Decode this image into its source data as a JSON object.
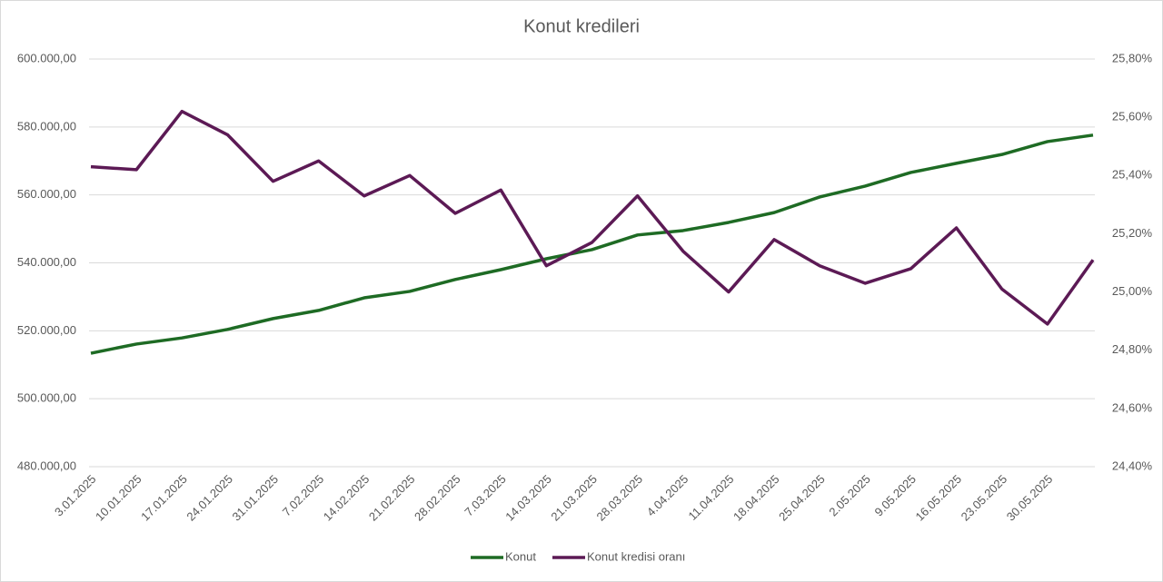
{
  "chart_data": {
    "type": "line",
    "title": "Konut kredileri",
    "categories": [
      "3.01.2025",
      "10.01.2025",
      "17.01.2025",
      "24.01.2025",
      "31.01.2025",
      "7.02.2025",
      "14.02.2025",
      "21.02.2025",
      "28.02.2025",
      "7.03.2025",
      "14.03.2025",
      "21.03.2025",
      "28.03.2025",
      "4.04.2025",
      "11.04.2025",
      "18.04.2025",
      "25.04.2025",
      "2.05.2025",
      "9.05.2025",
      "16.05.2025",
      "23.05.2025",
      "30.05.2025",
      null
    ],
    "series": [
      {
        "name": "Konut",
        "color": "#1e6b24",
        "values": [
          513400,
          516100,
          517900,
          520400,
          523600,
          526000,
          529700,
          531600,
          535100,
          538000,
          541200,
          543900,
          548200,
          549500,
          551900,
          554800,
          559400,
          562600,
          566600,
          569300,
          571900,
          575700,
          577600
        ]
      },
      {
        "name": "Konut kredisi oranı",
        "color": "#5c1a55",
        "axis": "y2",
        "values": [
          25.43,
          25.42,
          25.62,
          25.54,
          25.38,
          25.45,
          25.33,
          25.4,
          25.27,
          25.35,
          25.09,
          25.17,
          25.33,
          25.14,
          25.0,
          25.18,
          25.09,
          25.03,
          25.08,
          25.22,
          25.01,
          24.89,
          25.11
        ]
      }
    ],
    "ylim": [
      480000,
      600000
    ],
    "yticks": [
      {
        "value": 480000,
        "label": "480.000,00"
      },
      {
        "value": 500000,
        "label": "500.000,00"
      },
      {
        "value": 520000,
        "label": "520.000,00"
      },
      {
        "value": 540000,
        "label": "540.000,00"
      },
      {
        "value": 560000,
        "label": "560.000,00"
      },
      {
        "value": 580000,
        "label": "580.000,00"
      },
      {
        "value": 600000,
        "label": "600.000,00"
      }
    ],
    "y2lim": [
      24.4,
      25.8
    ],
    "y2ticks": [
      {
        "value": 24.4,
        "label": "24,40%"
      },
      {
        "value": 24.6,
        "label": "24,60%"
      },
      {
        "value": 24.8,
        "label": "24,80%"
      },
      {
        "value": 25.0,
        "label": "25,00%"
      },
      {
        "value": 25.2,
        "label": "25,20%"
      },
      {
        "value": 25.4,
        "label": "25,40%"
      },
      {
        "value": 25.6,
        "label": "25,60%"
      },
      {
        "value": 25.8,
        "label": "25,80%"
      }
    ],
    "grid": true,
    "legend": "bottom"
  }
}
